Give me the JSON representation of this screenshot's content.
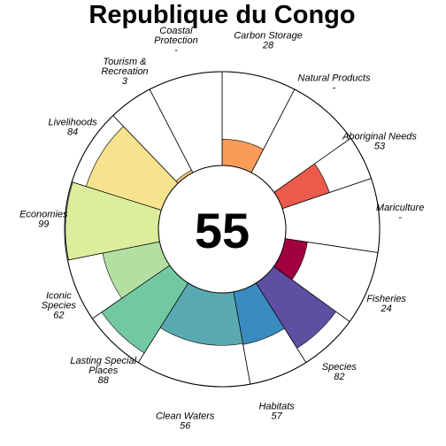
{
  "chart_data": {
    "type": "flower",
    "title": "Republique du Congo",
    "overall_score": "55",
    "max_value": 100,
    "petals": [
      {
        "name": "Carbon Storage",
        "value_label": "28",
        "score": 28,
        "color": "#F99C5A"
      },
      {
        "name": "Natural Products",
        "value_label": "-",
        "score": null,
        "color": "#EF5F4A"
      },
      {
        "name": "Aboriginal Needs",
        "value_label": "53",
        "score": 53,
        "color": "#EA5B4B"
      },
      {
        "name": "Mariculture",
        "value_label": "-",
        "score": null,
        "color": "#C2244A"
      },
      {
        "name": "Fisheries",
        "value_label": "24",
        "score": 24,
        "color": "#A0003F"
      },
      {
        "name": "Species",
        "value_label": "82",
        "score": 82,
        "color": "#5E4FA2"
      },
      {
        "name": "Habitats",
        "value_label": "57",
        "score": 57,
        "color": "#3A8BC0"
      },
      {
        "name": "Clean Waters",
        "value_label": "56",
        "score": 56,
        "color": "#59AAB0"
      },
      {
        "name": "Lasting Special Places",
        "value_label": "88",
        "score": 88,
        "color": "#72C8A2"
      },
      {
        "name": "Iconic Species",
        "value_label": "62",
        "score": 62,
        "color": "#B3E0A2"
      },
      {
        "name": "Economies",
        "value_label": "99",
        "score": 99,
        "color": "#DCEE9D"
      },
      {
        "name": "Livelihoods",
        "value_label": "84",
        "score": 84,
        "color": "#F7E38E"
      },
      {
        "name": "Tourism & Recreation",
        "value_label": "3",
        "score": 3,
        "color": "#FDC877"
      },
      {
        "name": "Coastal Protection",
        "value_label": "-",
        "score": null,
        "color": "#FCAF6A"
      }
    ]
  }
}
